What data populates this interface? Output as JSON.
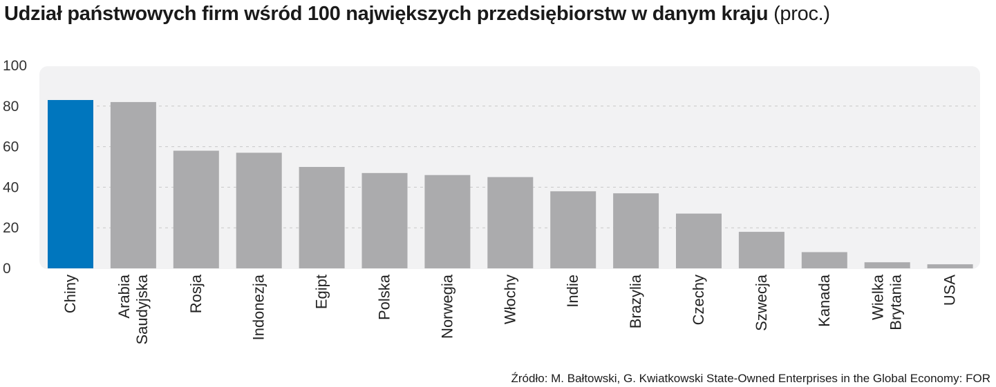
{
  "title": "Udział państwowych firm wśród 100 największych przedsiębiorstw w danym kraju",
  "title_unit": "(proc.)",
  "source": "Źródło: M. Bałtowski, G. Kwiatkowski State-Owned Enterprises in the Global Economy: FOR",
  "colors": {
    "highlight": "#0076BE",
    "bar": "#ABABAD",
    "panel": "#F2F2F3",
    "grid": "#C8C8C8"
  },
  "chart_data": {
    "type": "bar",
    "title": "Udział państwowych firm wśród 100 największych przedsiębiorstw w danym kraju (proc.)",
    "categories": [
      [
        "Chiny"
      ],
      [
        "Arabia",
        "Saudyjska"
      ],
      [
        "Rosja"
      ],
      [
        "Indonezja"
      ],
      [
        "Egipt"
      ],
      [
        "Polska"
      ],
      [
        "Norwegia"
      ],
      [
        "Włochy"
      ],
      [
        "Indie"
      ],
      [
        "Brazylia"
      ],
      [
        "Czechy"
      ],
      [
        "Szwecja"
      ],
      [
        "Kanada"
      ],
      [
        "Wielka",
        "Brytania"
      ],
      [
        "USA"
      ]
    ],
    "values": [
      83,
      82,
      58,
      57,
      50,
      47,
      46,
      45,
      38,
      37,
      27,
      18,
      8,
      3,
      2
    ],
    "highlight_index": 0,
    "ylim": [
      0,
      100
    ],
    "yticks": [
      0,
      20,
      40,
      60,
      80,
      100
    ],
    "xlabel": "",
    "ylabel": "",
    "grid": true,
    "legend": "none"
  }
}
